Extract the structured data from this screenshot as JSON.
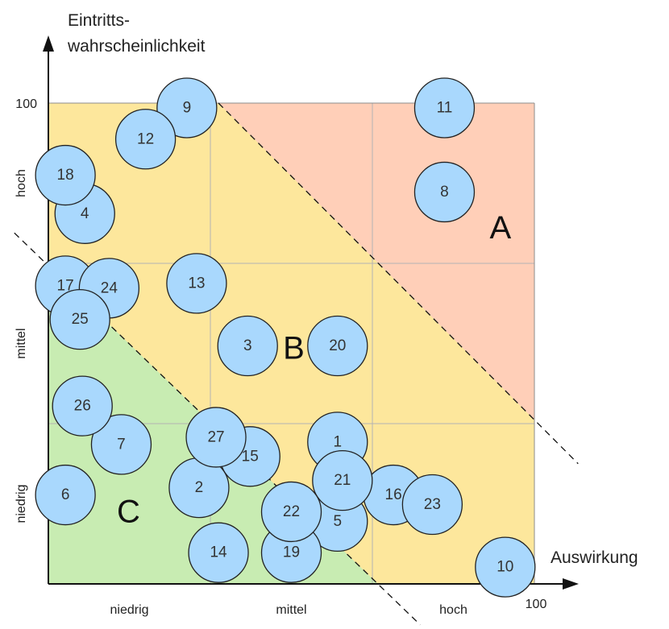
{
  "chart_data": {
    "type": "scatter",
    "xlabel": "Auswirkung",
    "ylabel_lines": [
      "Eintritts-",
      "wahrscheinlichkeit"
    ],
    "xlim": [
      0,
      100
    ],
    "ylim": [
      0,
      100
    ],
    "x_max_label": "100",
    "y_max_label": "100",
    "x_categories": [
      "niedrig",
      "mittel",
      "hoch"
    ],
    "y_categories": [
      "niedrig",
      "mittel",
      "hoch"
    ],
    "grid": true,
    "zones": [
      {
        "label": "A",
        "color": "#ffcfb8",
        "label_pos": [
          93,
          74
        ]
      },
      {
        "label": "B",
        "color": "#fde79c",
        "label_pos": [
          50.5,
          49
        ]
      },
      {
        "label": "C",
        "color": "#c8ecb2",
        "label_pos": [
          16.5,
          15
        ]
      }
    ],
    "divider_lines": [
      {
        "x1": 35,
        "y1": 100,
        "x2": 109,
        "y2": 25
      },
      {
        "x1": -7,
        "y1": 73,
        "x2": 76.5,
        "y2": -8.5
      }
    ],
    "bubble_color": "#a9d8fd",
    "bubble_stroke": "#222222",
    "points": [
      {
        "id": "1",
        "x": 59.5,
        "y": 29.5
      },
      {
        "id": "2",
        "x": 31,
        "y": 20
      },
      {
        "id": "3",
        "x": 41,
        "y": 49.5
      },
      {
        "id": "4",
        "x": 7.5,
        "y": 77
      },
      {
        "id": "5",
        "x": 59.5,
        "y": 13
      },
      {
        "id": "6",
        "x": 3.5,
        "y": 18.5
      },
      {
        "id": "7",
        "x": 15,
        "y": 29
      },
      {
        "id": "8",
        "x": 81.5,
        "y": 81.5
      },
      {
        "id": "9",
        "x": 28.5,
        "y": 99
      },
      {
        "id": "10",
        "x": 94,
        "y": 3.5
      },
      {
        "id": "11",
        "x": 81.5,
        "y": 99
      },
      {
        "id": "12",
        "x": 20,
        "y": 92.5
      },
      {
        "id": "13",
        "x": 30.5,
        "y": 62.5
      },
      {
        "id": "14",
        "x": 35,
        "y": 6.5
      },
      {
        "id": "15",
        "x": 41.5,
        "y": 26.5
      },
      {
        "id": "16",
        "x": 71,
        "y": 18.5
      },
      {
        "id": "17",
        "x": 3.5,
        "y": 62
      },
      {
        "id": "18",
        "x": 3.5,
        "y": 85
      },
      {
        "id": "19",
        "x": 50,
        "y": 6.5
      },
      {
        "id": "20",
        "x": 59.5,
        "y": 49.5
      },
      {
        "id": "21",
        "x": 60.5,
        "y": 21.5
      },
      {
        "id": "22",
        "x": 50,
        "y": 15
      },
      {
        "id": "23",
        "x": 79,
        "y": 16.5
      },
      {
        "id": "24",
        "x": 12.5,
        "y": 61.5
      },
      {
        "id": "25",
        "x": 6.5,
        "y": 55
      },
      {
        "id": "26",
        "x": 7,
        "y": 37
      },
      {
        "id": "27",
        "x": 34.5,
        "y": 30.5
      }
    ]
  }
}
